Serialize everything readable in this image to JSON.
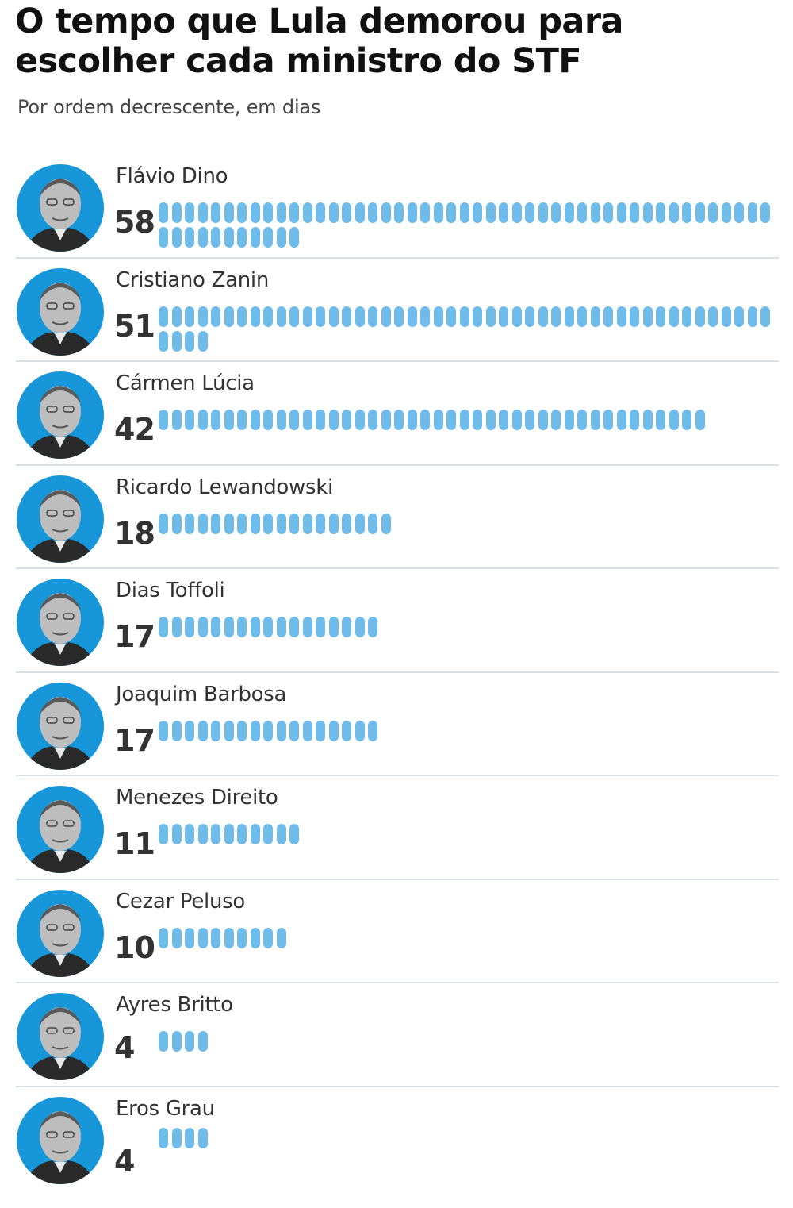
{
  "header": {
    "title": "O tempo que Lula demorou para escolher cada ministro do STF",
    "subtitle": "Por ordem decrescente, em dias"
  },
  "colors": {
    "avatar_bg": "#1797d9",
    "pill": "#6fbbe9",
    "divider": "#d9dfe3",
    "text": "#333333"
  },
  "rows": [
    {
      "name": "Flávio Dino",
      "value": "58",
      "days": 58,
      "icon": "portrait-photo"
    },
    {
      "name": "Cristiano Zanin",
      "value": "51",
      "days": 51,
      "icon": "portrait-photo"
    },
    {
      "name": "Cármen Lúcia",
      "value": "42",
      "days": 42,
      "icon": "portrait-photo"
    },
    {
      "name": "Ricardo Lewandowski",
      "value": "18",
      "days": 18,
      "icon": "portrait-photo"
    },
    {
      "name": "Dias Toffoli",
      "value": "17",
      "days": 17,
      "icon": "portrait-photo"
    },
    {
      "name": "Joaquim Barbosa",
      "value": "17",
      "days": 17,
      "icon": "portrait-photo"
    },
    {
      "name": "Menezes Direito",
      "value": "11",
      "days": 11,
      "icon": "portrait-photo"
    },
    {
      "name": "Cezar Peluso",
      "value": "10",
      "days": 10,
      "icon": "portrait-photo"
    },
    {
      "name": "Ayres Britto",
      "value": "4",
      "days": 4,
      "icon": "portrait-photo"
    },
    {
      "name": "Eros Grau",
      "value": "4",
      "days": 4,
      "icon": "portrait-photo"
    }
  ],
  "chart_data": {
    "type": "bar",
    "title": "O tempo que Lula demorou para escolher cada ministro do STF",
    "subtitle": "Por ordem decrescente, em dias",
    "categories": [
      "Flávio Dino",
      "Cristiano Zanin",
      "Cármen Lúcia",
      "Ricardo Lewandowski",
      "Dias Toffoli",
      "Joaquim Barbosa",
      "Menezes Direito",
      "Cezar Peluso",
      "Ayres Britto",
      "Eros Grau"
    ],
    "values": [
      58,
      51,
      42,
      18,
      17,
      17,
      11,
      10,
      4,
      4
    ],
    "xlabel": "",
    "ylabel": "dias",
    "orientation": "horizontal",
    "style": "pictogram (one pill per day, 47 pills per line)",
    "grid": false,
    "legend": "none"
  }
}
